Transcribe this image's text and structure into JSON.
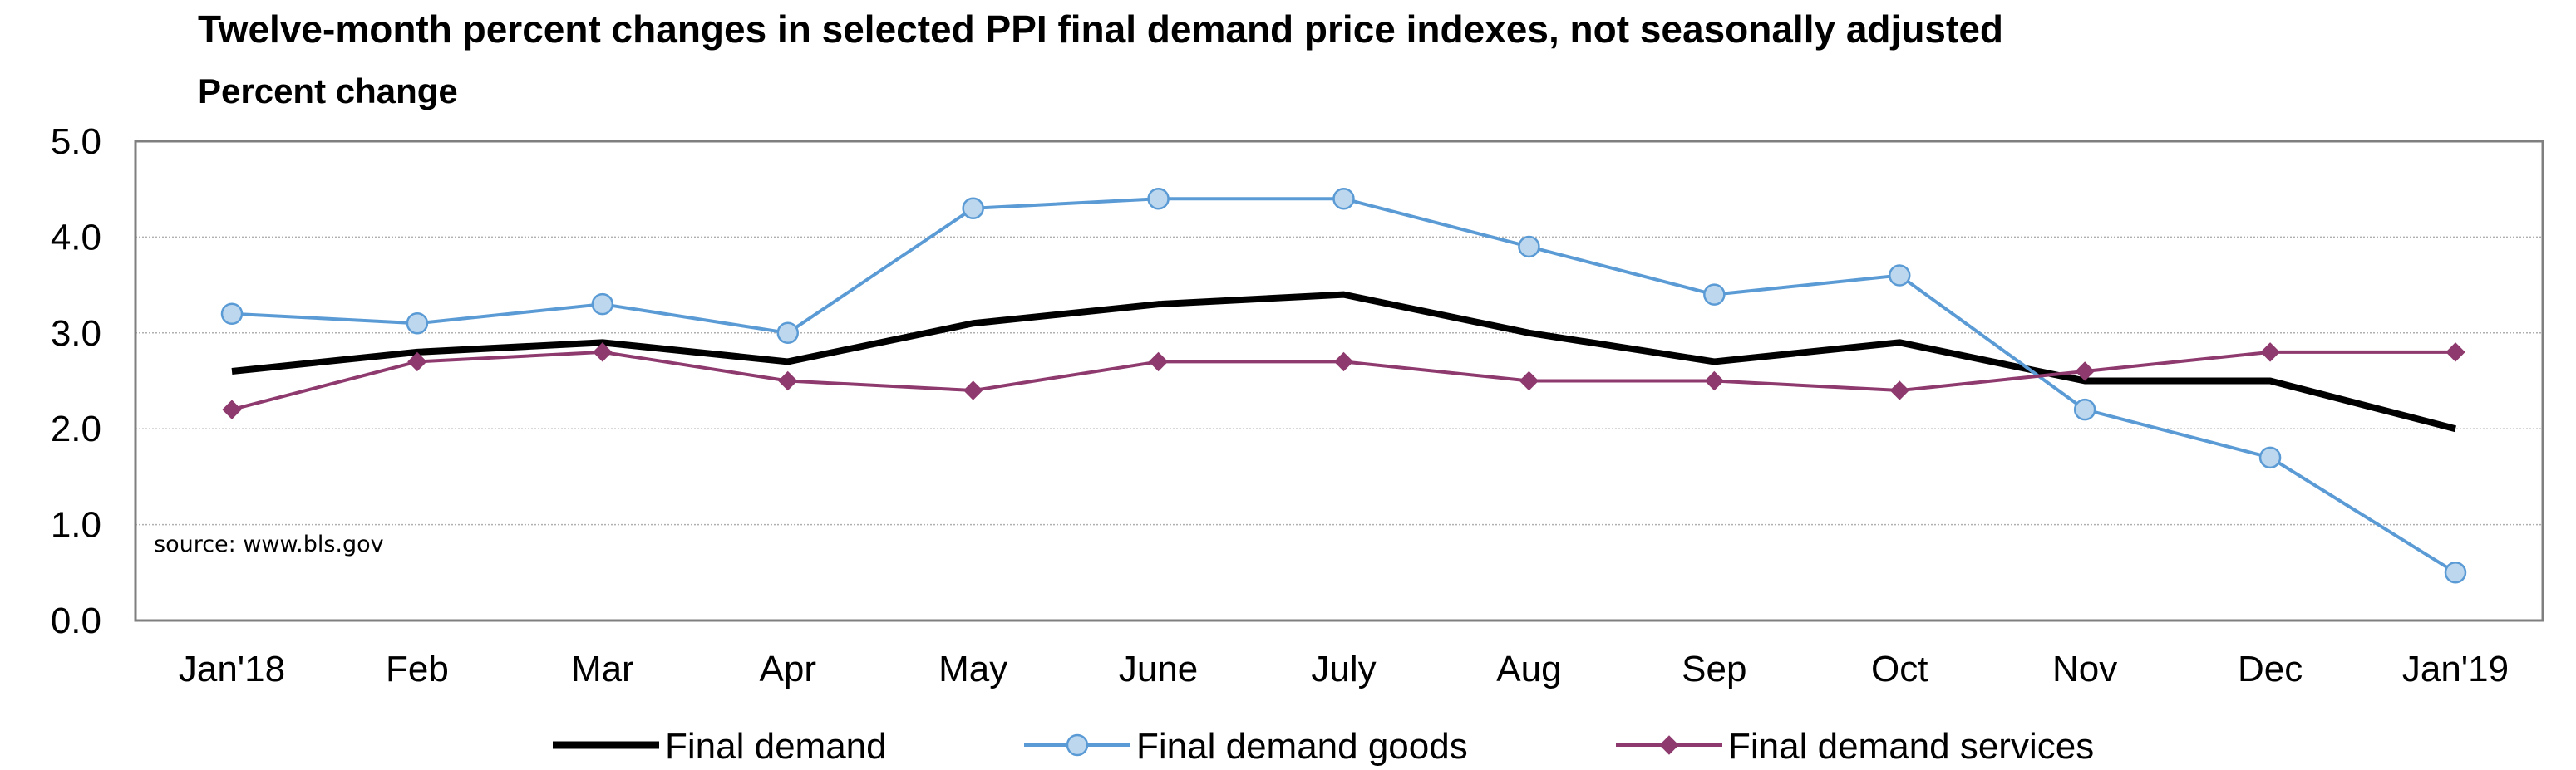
{
  "chart_data": {
    "type": "line",
    "title": "Twelve-month percent changes in selected PPI final demand price indexes, not seasonally adjusted",
    "subtitle": "Percent change",
    "source_note": "source: www.bls.gov",
    "categories": [
      "Jan'18",
      "Feb",
      "Mar",
      "Apr",
      "May",
      "June",
      "July",
      "Aug",
      "Sep",
      "Oct",
      "Nov",
      "Dec",
      "Jan'19"
    ],
    "y_ticks": [
      "0.0",
      "1.0",
      "2.0",
      "3.0",
      "4.0",
      "5.0"
    ],
    "ylim": [
      0,
      5
    ],
    "grid": true,
    "legend_position": "bottom",
    "series": [
      {
        "name": "Final demand",
        "color": "#000000",
        "marker": "none",
        "values": [
          2.6,
          2.8,
          2.9,
          2.7,
          3.1,
          3.3,
          3.4,
          3.0,
          2.7,
          2.9,
          2.5,
          2.5,
          2.0
        ]
      },
      {
        "name": "Final demand goods",
        "color": "#5B9BD5",
        "marker": "circle",
        "marker_fill": "#BDD7EE",
        "values": [
          3.2,
          3.1,
          3.3,
          3.0,
          4.3,
          4.4,
          4.4,
          3.9,
          3.4,
          3.6,
          2.2,
          1.7,
          0.5
        ]
      },
      {
        "name": "Final demand services",
        "color": "#8E3A6E",
        "marker": "diamond",
        "values": [
          2.2,
          2.7,
          2.8,
          2.5,
          2.4,
          2.7,
          2.7,
          2.5,
          2.5,
          2.4,
          2.6,
          2.8,
          2.8
        ]
      }
    ]
  }
}
